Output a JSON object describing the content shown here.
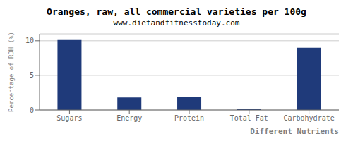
{
  "chart_data": {
    "type": "bar",
    "title": "Oranges, raw, all commercial varieties per 100g",
    "subtitle": "www.dietandfitnesstoday.com",
    "xlabel": "Different Nutrients",
    "ylabel": "Percentage of RDH (%)",
    "categories": [
      "Sugars",
      "Energy",
      "Protein",
      "Total Fat",
      "Carbohydrate"
    ],
    "values": [
      10.1,
      1.8,
      1.9,
      0.1,
      9.0
    ],
    "color": "#1f3a7a",
    "ylim": [
      0,
      11
    ],
    "yticks": [
      0,
      5,
      10
    ],
    "grid": true
  }
}
